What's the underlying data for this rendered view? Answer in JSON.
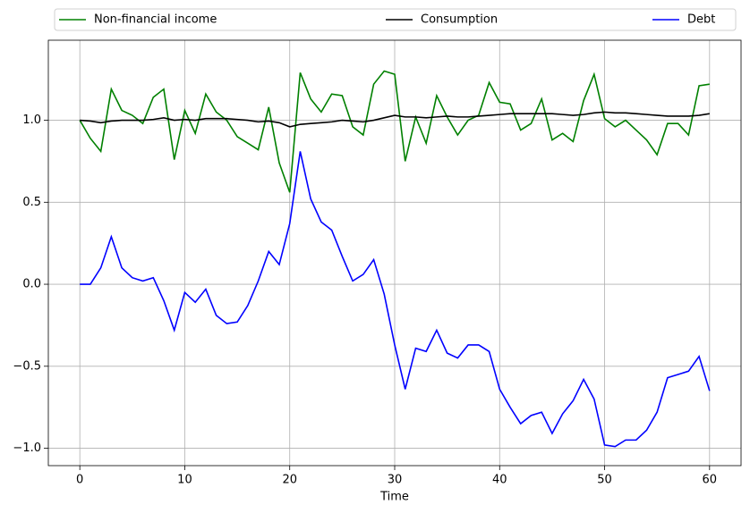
{
  "chart_data": {
    "type": "line",
    "xlabel": "Time",
    "x": [
      0,
      1,
      2,
      3,
      4,
      5,
      6,
      7,
      8,
      9,
      10,
      11,
      12,
      13,
      14,
      15,
      16,
      17,
      18,
      19,
      20,
      21,
      22,
      23,
      24,
      25,
      26,
      27,
      28,
      29,
      30,
      31,
      32,
      33,
      34,
      35,
      36,
      37,
      38,
      39,
      40,
      41,
      42,
      43,
      44,
      45,
      46,
      47,
      48,
      49,
      50,
      51,
      52,
      53,
      54,
      55,
      56,
      57,
      58,
      59,
      60
    ],
    "series": [
      {
        "name": "Non-financial income",
        "color": "#008000",
        "values": [
          1.0,
          0.89,
          0.81,
          1.19,
          1.06,
          1.03,
          0.98,
          1.14,
          1.19,
          0.76,
          1.06,
          0.92,
          1.16,
          1.05,
          1.0,
          0.9,
          0.86,
          0.82,
          1.08,
          0.74,
          0.56,
          1.29,
          1.13,
          1.05,
          1.16,
          1.15,
          0.96,
          0.91,
          1.22,
          1.3,
          1.28,
          0.75,
          1.02,
          0.86,
          1.15,
          1.02,
          0.91,
          1.0,
          1.03,
          1.23,
          1.11,
          1.1,
          0.94,
          0.98,
          1.13,
          0.88,
          0.92,
          0.87,
          1.12,
          1.28,
          1.01,
          0.96,
          1.0,
          0.94,
          0.88,
          0.79,
          0.98,
          0.98,
          0.91,
          1.21,
          1.22
        ]
      },
      {
        "name": "Consumption",
        "color": "#000000",
        "values": [
          1.0,
          0.995,
          0.985,
          0.995,
          1.0,
          1.0,
          1.0,
          1.005,
          1.015,
          1.0,
          1.005,
          1.0,
          1.01,
          1.01,
          1.01,
          1.005,
          1.0,
          0.99,
          0.995,
          0.985,
          0.96,
          0.975,
          0.98,
          0.985,
          0.99,
          1.0,
          0.995,
          0.99,
          1.0,
          1.015,
          1.03,
          1.02,
          1.02,
          1.015,
          1.02,
          1.025,
          1.02,
          1.02,
          1.025,
          1.03,
          1.035,
          1.04,
          1.04,
          1.04,
          1.04,
          1.04,
          1.035,
          1.03,
          1.035,
          1.045,
          1.05,
          1.045,
          1.045,
          1.04,
          1.035,
          1.03,
          1.025,
          1.025,
          1.025,
          1.03,
          1.04
        ]
      },
      {
        "name": "Debt",
        "color": "#0000ff",
        "values": [
          0.0,
          0.0,
          0.1,
          0.29,
          0.1,
          0.04,
          0.02,
          0.04,
          -0.1,
          -0.28,
          -0.05,
          -0.11,
          -0.03,
          -0.19,
          -0.24,
          -0.23,
          -0.13,
          0.02,
          0.2,
          0.12,
          0.37,
          0.81,
          0.52,
          0.38,
          0.33,
          0.17,
          0.02,
          0.06,
          0.15,
          -0.06,
          -0.37,
          -0.64,
          -0.39,
          -0.41,
          -0.28,
          -0.42,
          -0.45,
          -0.37,
          -0.37,
          -0.41,
          -0.64,
          -0.75,
          -0.85,
          -0.8,
          -0.78,
          -0.91,
          -0.79,
          -0.71,
          -0.58,
          -0.7,
          -0.98,
          -0.99,
          -0.95,
          -0.95,
          -0.89,
          -0.78,
          -0.57,
          -0.55,
          -0.53,
          -0.44,
          -0.65
        ]
      }
    ],
    "xlim": [
      -3,
      63
    ],
    "xticks": [
      0,
      10,
      20,
      30,
      40,
      50,
      60
    ],
    "ylim": [
      -1.106,
      1.488
    ],
    "yticks": [
      {
        "value": -1.0,
        "label": "−1.0"
      },
      {
        "value": -0.5,
        "label": "−0.5"
      },
      {
        "value": 0.0,
        "label": "0.0"
      },
      {
        "value": 0.5,
        "label": "0.5"
      },
      {
        "value": 1.0,
        "label": "1.0"
      }
    ],
    "grid": true,
    "legend": "above"
  }
}
